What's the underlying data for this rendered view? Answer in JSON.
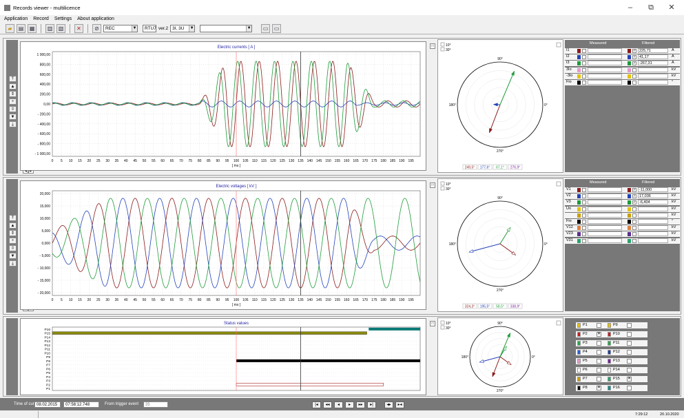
{
  "window": {
    "title": "Records viewer - multilicence",
    "min": "–",
    "restore": "⧉",
    "close": "✕"
  },
  "menu": [
    "Application",
    "Record",
    "Settings",
    "About application"
  ],
  "toolbar": {
    "mode": "REC",
    "device": "RTU7",
    "version": "ver.2",
    "config": "3I, 3U",
    "extra": ""
  },
  "currents": {
    "title": "Electric currents [ A ]",
    "xlabel": "[ ms ]",
    "yticks": [
      "1 000,00",
      "800,00",
      "600,00",
      "400,00",
      "200,00",
      "0,00",
      "- 200,00",
      "- 400,00",
      "- 600,00",
      "- 800,00",
      "- 1 000,00"
    ],
    "xticks": [
      "0",
      "5",
      "10",
      "15",
      "20",
      "25",
      "30",
      "35",
      "40",
      "45",
      "50",
      "55",
      "60",
      "65",
      "70",
      "75",
      "80",
      "85",
      "90",
      "95",
      "100",
      "105",
      "110",
      "115",
      "120",
      "125",
      "130",
      "135",
      "140",
      "145",
      "150",
      "155",
      "160",
      "165",
      "170",
      "175",
      "180",
      "185",
      "190",
      "195"
    ],
    "polar_angles": [
      "249,5°",
      "177,6°",
      "67,1°",
      "276,9°"
    ],
    "table": {
      "measured": "Measured",
      "filtered": "Filtered",
      "rows": [
        {
          "label": "I1",
          "val": "225,71",
          "unit": "A"
        },
        {
          "label": "I2",
          "val": "41,17",
          "unit": "A"
        },
        {
          "label": "I3",
          "val": "-267,31",
          "unit": "A"
        },
        {
          "label": "3Io",
          "val": "",
          "unit": "kV"
        },
        {
          "label": "-3Io",
          "val": "",
          "unit": "kV"
        },
        {
          "label": "Fio",
          "val": "",
          "unit": "°"
        }
      ]
    }
  },
  "voltages": {
    "title": "Electric voltages [ kV ]",
    "xlabel": "[ ms ]",
    "yticks": [
      "20,000",
      "15,000",
      "10,000",
      "5,000",
      "0,000",
      "- 5,000",
      "- 10,000",
      "- 15,000",
      "- 20,000"
    ],
    "polar_angles": [
      "324,3°",
      "195,5°",
      "58,5°",
      "338,9°"
    ],
    "table": {
      "measured": "Measured",
      "filtered": "Filtered",
      "rows": [
        {
          "label": "V1",
          "val": "-11,000",
          "unit": "kV"
        },
        {
          "label": "V2",
          "val": "17,036",
          "unit": "kV"
        },
        {
          "label": "V3",
          "val": "-6,404",
          "unit": "kV"
        },
        {
          "label": "Uo",
          "val": "",
          "unit": "kV"
        },
        {
          "label": "",
          "val": "",
          "unit": "kV"
        },
        {
          "label": "Fio",
          "val": "",
          "unit": "°"
        },
        {
          "label": "V12",
          "val": "",
          "unit": "kV"
        },
        {
          "label": "V23",
          "val": "",
          "unit": "kV"
        },
        {
          "label": "V31",
          "val": "",
          "unit": "kV"
        }
      ]
    }
  },
  "status": {
    "title": "Status values",
    "xlabel": "[ ms ]",
    "labels": [
      "P16",
      "P15",
      "P14",
      "P13",
      "P12",
      "P11",
      "P10",
      "P9",
      "P8",
      "P7",
      "P6",
      "P5",
      "P4",
      "P3",
      "P2",
      "P1"
    ],
    "checks_left": [
      {
        "n": "P1",
        "c": "#e6c200"
      },
      {
        "n": "P2",
        "c": "#c41e1e"
      },
      {
        "n": "P3",
        "c": "#27a64b"
      },
      {
        "n": "P4",
        "c": "#2a5bd7"
      },
      {
        "n": "P5",
        "c": "#e79ad1"
      },
      {
        "n": "P6",
        "c": "#ffffff"
      },
      {
        "n": "P7",
        "c": "#c8a000"
      },
      {
        "n": "P8",
        "c": "#000000"
      }
    ],
    "checks_right": [
      {
        "n": "P9",
        "c": "#e6c200"
      },
      {
        "n": "P10",
        "c": "#c41e1e"
      },
      {
        "n": "P11",
        "c": "#27a64b"
      },
      {
        "n": "P12",
        "c": "#1f3d9c"
      },
      {
        "n": "P13",
        "c": "#7a1fa0"
      },
      {
        "n": "P14",
        "c": "#ffffff"
      },
      {
        "n": "P15",
        "c": "#2aa36b"
      },
      {
        "n": "P16",
        "c": "#128c8c"
      }
    ],
    "checked": [
      "P2",
      "P8",
      "P15"
    ]
  },
  "polar": {
    "deg10": "10°",
    "deg30": "30°",
    "top": "90°",
    "left": "180°",
    "right": "0°",
    "bottom": "270°"
  },
  "bottom": {
    "time_of_cursor_label": "Time of cursor",
    "date": "08.02.2015",
    "time": "07:58:12.748",
    "from_trigger_label": "From trigger event",
    "from_trigger": "35"
  },
  "footer": {
    "time": "7:29:12",
    "date": "20.10.2020"
  },
  "colors": {
    "red": "#8b1a1a",
    "green": "#1e9c3a",
    "blue": "#2242b8",
    "teal": "#0b7a78",
    "olive": "#8a8a10"
  },
  "chart_data": [
    {
      "type": "line",
      "title": "Electric currents [ A ]",
      "xlabel": "[ ms ]",
      "ylim": [
        -1100,
        1100
      ],
      "xlim": [
        0,
        200
      ],
      "series": [
        {
          "name": "I1",
          "note": "red sine, ~0 before 85ms, amplitude ~950 from 95ms to 165ms"
        },
        {
          "name": "I2",
          "note": "blue, small amplitude"
        },
        {
          "name": "I3",
          "note": "green sine, amplitude ~950"
        }
      ]
    },
    {
      "type": "line",
      "title": "Electric voltages [ kV ]",
      "xlabel": "[ ms ]",
      "ylim": [
        -22000,
        22000
      ],
      "xlim": [
        0,
        200
      ],
      "series": [
        {
          "name": "V1"
        },
        {
          "name": "V2"
        },
        {
          "name": "V3"
        }
      ]
    },
    {
      "type": "bar",
      "title": "Status values",
      "xlabel": "[ ms ]",
      "series": [
        {
          "name": "P15",
          "start": 0,
          "end": 171
        },
        {
          "name": "P16",
          "start": 172,
          "end": 200
        },
        {
          "name": "P8",
          "start": 100,
          "end": 200
        },
        {
          "name": "P2",
          "start": 100,
          "end": 180
        }
      ]
    }
  ]
}
